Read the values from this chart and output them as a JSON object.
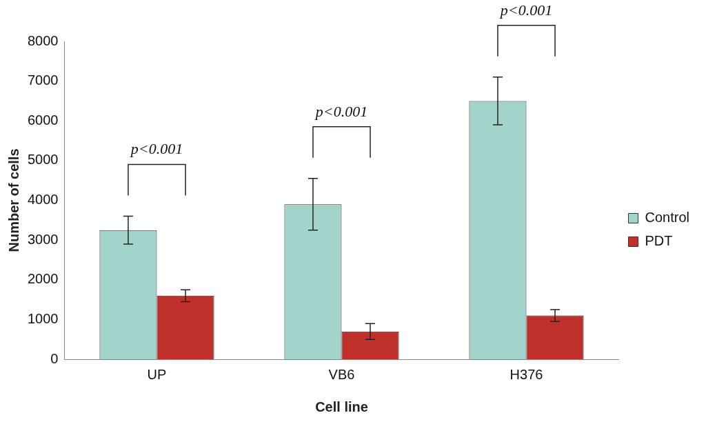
{
  "chart_data": {
    "type": "bar",
    "xlabel": "Cell line",
    "ylabel": "Number of cells",
    "categories": [
      "UP",
      "VB6",
      "H376"
    ],
    "series": [
      {
        "name": "Control",
        "color": "#a3d4cc",
        "values": [
          3250,
          3900,
          6500
        ],
        "errors": [
          350,
          650,
          600
        ]
      },
      {
        "name": "PDT",
        "color": "#c0302a",
        "values": [
          1600,
          700,
          1100
        ],
        "errors": [
          150,
          200,
          150
        ]
      }
    ],
    "ylim": [
      0,
      8000
    ],
    "yticks": [
      0,
      1000,
      2000,
      3000,
      4000,
      5000,
      6000,
      7000,
      8000
    ],
    "grid": false,
    "legend": "right",
    "annotations": [
      "p<0.001",
      "p<0.001",
      "p<0.001"
    ]
  }
}
